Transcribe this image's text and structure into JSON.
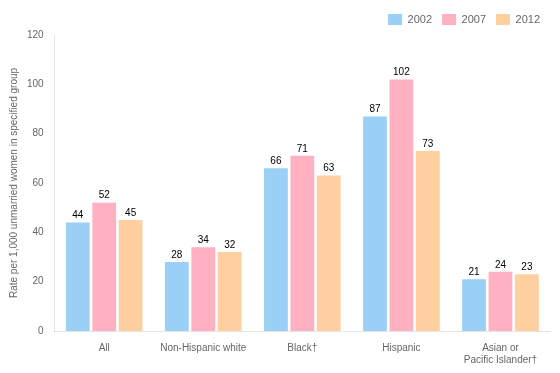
{
  "chart_data": {
    "type": "bar",
    "categories": [
      "All",
      "Non-Hispanic white",
      "Black†",
      "Hispanic",
      "Asian or\nPacific Islander†"
    ],
    "series": [
      {
        "name": "2002",
        "values": [
          44,
          28,
          66,
          87,
          21
        ]
      },
      {
        "name": "2007",
        "values": [
          52,
          34,
          71,
          102,
          24
        ]
      },
      {
        "name": "2012",
        "values": [
          45,
          32,
          63,
          73,
          23
        ]
      }
    ],
    "ylabel": "Rate per 1,000 unmarried women in specified group",
    "ylim": [
      0,
      120
    ],
    "yticks": [
      0,
      20,
      40,
      60,
      80,
      100,
      120
    ],
    "grid": false,
    "legend": "upper right",
    "data_labels": true
  }
}
